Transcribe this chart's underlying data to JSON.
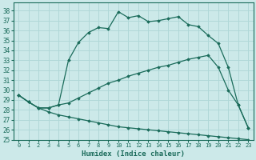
{
  "xlabel": "Humidex (Indice chaleur)",
  "xlim": [
    -0.5,
    23.5
  ],
  "ylim": [
    25,
    38.8
  ],
  "yticks": [
    25,
    26,
    27,
    28,
    29,
    30,
    31,
    32,
    33,
    34,
    35,
    36,
    37,
    38
  ],
  "xticks": [
    0,
    1,
    2,
    3,
    4,
    5,
    6,
    7,
    8,
    9,
    10,
    11,
    12,
    13,
    14,
    15,
    16,
    17,
    18,
    19,
    20,
    21,
    22,
    23
  ],
  "background_color": "#cce9e9",
  "grid_color": "#b0d8d8",
  "line_color": "#1a6b5a",
  "lines": [
    {
      "x": [
        0,
        1,
        2,
        3,
        4,
        5,
        6,
        7,
        8,
        9,
        10,
        11,
        12,
        13,
        14,
        15,
        16,
        17,
        18,
        19,
        20,
        21,
        22,
        23
      ],
      "y": [
        29.5,
        28.8,
        28.2,
        28.2,
        28.5,
        33.0,
        34.8,
        35.8,
        36.3,
        36.2,
        37.9,
        37.3,
        37.5,
        36.9,
        37.0,
        37.2,
        37.4,
        36.6,
        36.4,
        35.5,
        34.7,
        32.3,
        28.5,
        26.2
      ]
    },
    {
      "x": [
        0,
        1,
        2,
        3,
        4,
        5,
        6,
        7,
        8,
        9,
        10,
        11,
        12,
        13,
        14,
        15,
        16,
        17,
        18,
        19,
        20,
        21,
        22,
        23
      ],
      "y": [
        29.5,
        28.8,
        28.2,
        28.2,
        28.5,
        28.7,
        29.2,
        29.7,
        30.2,
        30.7,
        31.0,
        31.4,
        31.7,
        32.0,
        32.3,
        32.5,
        32.8,
        33.1,
        33.3,
        33.5,
        32.3,
        30.0,
        28.5,
        26.2
      ]
    },
    {
      "x": [
        0,
        1,
        2,
        3,
        4,
        5,
        6,
        7,
        8,
        9,
        10,
        11,
        12,
        13,
        14,
        15,
        16,
        17,
        18,
        19,
        20,
        21,
        22,
        23
      ],
      "y": [
        29.5,
        28.8,
        28.2,
        27.8,
        27.5,
        27.3,
        27.1,
        26.9,
        26.7,
        26.5,
        26.3,
        26.2,
        26.1,
        26.0,
        25.9,
        25.8,
        25.7,
        25.6,
        25.5,
        25.4,
        25.3,
        25.2,
        25.1,
        25.0
      ]
    }
  ]
}
